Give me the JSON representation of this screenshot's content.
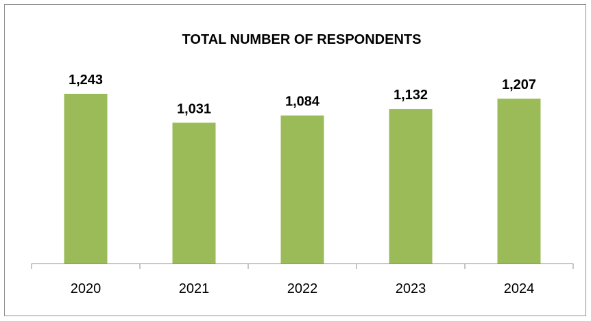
{
  "chart_data": {
    "type": "bar",
    "title": "TOTAL NUMBER OF RESPONDENTS",
    "categories": [
      "2020",
      "2021",
      "2022",
      "2023",
      "2024"
    ],
    "values": [
      1243,
      1031,
      1084,
      1132,
      1207
    ],
    "data_labels": [
      "1,243",
      "1,031",
      "1,084",
      "1,132",
      "1,207"
    ],
    "xlabel": "",
    "ylabel": "",
    "ylim": [
      0,
      1243
    ],
    "grid": false,
    "legend": "none",
    "bar_color": "#9BBB59"
  }
}
